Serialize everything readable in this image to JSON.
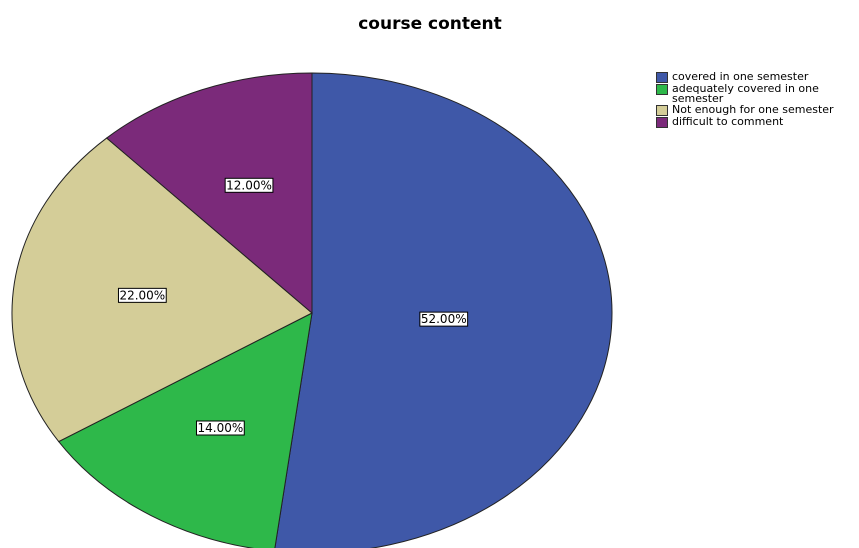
{
  "chart_data": {
    "type": "pie",
    "title": "course content",
    "categories": [
      "covered in one semester",
      "adequately covered in one semester",
      "Not enough for one semester",
      "difficult to comment"
    ],
    "values": [
      52,
      14,
      22,
      12
    ],
    "value_labels": [
      "52.00%",
      "14.00%",
      "22.00%",
      "12.00%"
    ],
    "colors": [
      "#3f58a8",
      "#2eb84a",
      "#d4cd98",
      "#7b2a7a"
    ],
    "legend": "right"
  }
}
